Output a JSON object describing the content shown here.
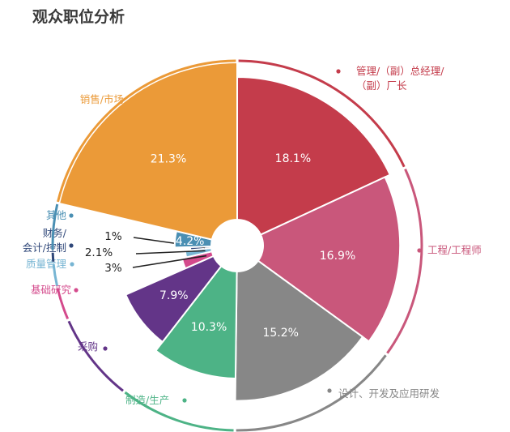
{
  "title": "观众职位分析",
  "chart_data": {
    "type": "pie",
    "title": "观众职位分析",
    "value_unit": "%",
    "series": [
      {
        "label": "管理/（副）总经理/（副）厂长",
        "value": 18.1,
        "display": "18.1%",
        "color": "#c43c4b"
      },
      {
        "label": "工程/工程师",
        "value": 16.9,
        "display": "16.9%",
        "color": "#c9577b"
      },
      {
        "label": "设计、开发及应用研发",
        "value": 15.2,
        "display": "15.2%",
        "color": "#878787"
      },
      {
        "label": "制造/生产",
        "value": 10.3,
        "display": "10.3%",
        "color": "#4db386"
      },
      {
        "label": "采购",
        "value": 7.9,
        "display": "7.9%",
        "color": "#633588"
      },
      {
        "label": "基础研究",
        "value": 3,
        "display": "3%",
        "color": "#d44a8c"
      },
      {
        "label": "质量管理",
        "value": 2.1,
        "display": "2.1%",
        "color": "#77b5d3"
      },
      {
        "label": "财务/会计/控制",
        "value": 1,
        "display": "1%",
        "color": "#2f4779"
      },
      {
        "label": "其他",
        "value": 4.2,
        "display": "4.2%",
        "color": "#4a8fb3"
      },
      {
        "label": "销售/市场",
        "value": 21.3,
        "display": "21.3%",
        "color": "#eb9a38"
      }
    ]
  }
}
